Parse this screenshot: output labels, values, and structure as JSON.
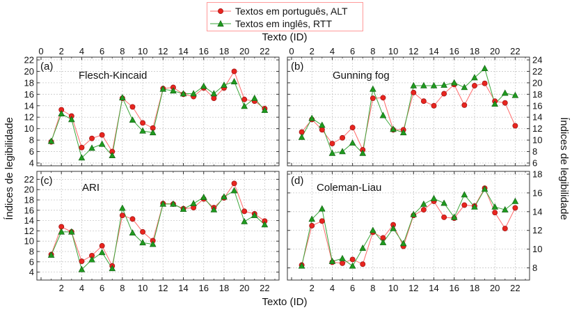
{
  "legend": {
    "alt_label": "Textos em português, ALT",
    "rtt_label": "Textos em inglês, RTT"
  },
  "colors": {
    "alt": "#e8251f",
    "rtt": "#1f9a1f",
    "alt_line": "#ff6a6a",
    "rtt_line": "#3aa63a",
    "grid": "#c8c8c8"
  },
  "axes": {
    "top_xlabel": "Texto (ID)",
    "bottom_xlabel": "Texto (ID)",
    "left_ylabel": "Índices de legibilidade",
    "right_ylabel": "Índices de legibilidade"
  },
  "chart_data": [
    {
      "type": "line",
      "panel": "(a)",
      "title": "Flesch-Kincaid",
      "x": [
        1,
        2,
        3,
        4,
        5,
        6,
        7,
        8,
        9,
        10,
        11,
        12,
        13,
        14,
        15,
        16,
        17,
        18,
        19,
        20,
        21,
        22
      ],
      "xlim": [
        0,
        23
      ],
      "xticks": [
        0,
        2,
        4,
        6,
        8,
        10,
        12,
        14,
        16,
        18,
        20,
        22
      ],
      "ylim": [
        4,
        22
      ],
      "yticks": [
        4,
        6,
        8,
        10,
        12,
        14,
        16,
        18,
        20,
        22
      ],
      "y_axis_side": "left",
      "series": [
        {
          "name": "Textos em português, ALT",
          "values": [
            7.7,
            13.3,
            12.2,
            6.7,
            8.3,
            8.9,
            6.0,
            15.3,
            13.8,
            11.0,
            10.1,
            17.0,
            17.2,
            16.0,
            15.6,
            17.1,
            15.3,
            17.1,
            20.0,
            15.1,
            14.8,
            13.5
          ]
        },
        {
          "name": "Textos em inglês, RTT",
          "values": [
            7.8,
            12.6,
            11.6,
            4.9,
            6.6,
            7.3,
            5.3,
            15.4,
            11.5,
            9.6,
            9.3,
            16.9,
            16.6,
            16.1,
            16.1,
            17.4,
            16.1,
            17.6,
            18.2,
            13.9,
            15.3,
            13.2
          ]
        }
      ]
    },
    {
      "type": "line",
      "panel": "(b)",
      "title": "Gunning fog",
      "x": [
        1,
        2,
        3,
        4,
        5,
        6,
        7,
        8,
        9,
        10,
        11,
        12,
        13,
        14,
        15,
        16,
        17,
        18,
        19,
        20,
        21,
        22
      ],
      "xlim": [
        0,
        23
      ],
      "xticks": [
        0,
        2,
        4,
        6,
        8,
        10,
        12,
        14,
        16,
        18,
        20,
        22
      ],
      "ylim": [
        6,
        24
      ],
      "yticks": [
        6,
        8,
        10,
        12,
        14,
        16,
        18,
        20,
        22,
        24
      ],
      "y_axis_side": "right",
      "series": [
        {
          "name": "Textos em português, ALT",
          "values": [
            11.4,
            13.6,
            11.8,
            9.4,
            10.4,
            12.2,
            8.3,
            17.3,
            17.4,
            11.8,
            11.8,
            18.3,
            16.8,
            16.0,
            18.1,
            19.7,
            16.1,
            19.5,
            19.9,
            16.8,
            16.5,
            12.5
          ]
        },
        {
          "name": "Textos em inglês, RTT",
          "values": [
            10.5,
            13.8,
            12.6,
            7.7,
            8.0,
            9.5,
            7.7,
            18.9,
            14.3,
            11.9,
            11.3,
            19.5,
            19.5,
            19.5,
            19.6,
            20.0,
            19.2,
            20.9,
            22.5,
            16.3,
            18.2,
            17.8
          ]
        }
      ]
    },
    {
      "type": "line",
      "panel": "(c)",
      "title": "ARI",
      "x": [
        1,
        2,
        3,
        4,
        5,
        6,
        7,
        8,
        9,
        10,
        11,
        12,
        13,
        14,
        15,
        16,
        17,
        18,
        19,
        20,
        21,
        22
      ],
      "xlim": [
        0,
        23
      ],
      "xticks": [
        0,
        2,
        4,
        6,
        8,
        10,
        12,
        14,
        16,
        18,
        20,
        22
      ],
      "ylim": [
        3,
        23
      ],
      "yticks": [
        4,
        6,
        8,
        10,
        12,
        14,
        16,
        18,
        20,
        22
      ],
      "y_axis_side": "left",
      "series": [
        {
          "name": "Textos em português, ALT",
          "values": [
            7.4,
            12.8,
            11.8,
            6.1,
            7.2,
            9.1,
            5.2,
            15.0,
            14.3,
            11.8,
            10.1,
            17.3,
            17.2,
            16.3,
            16.5,
            18.2,
            16.5,
            18.4,
            21.2,
            15.8,
            15.3,
            13.9
          ]
        },
        {
          "name": "Textos em inglês, RTT",
          "values": [
            7.3,
            11.8,
            11.8,
            4.5,
            6.4,
            7.8,
            4.7,
            16.4,
            11.6,
            9.7,
            9.4,
            17.2,
            17.2,
            16.2,
            17.3,
            18.5,
            16.1,
            18.6,
            19.8,
            13.8,
            15.0,
            13.2
          ]
        }
      ]
    },
    {
      "type": "line",
      "panel": "(d)",
      "title": "Coleman-Liau",
      "x": [
        1,
        2,
        3,
        4,
        5,
        6,
        7,
        8,
        9,
        10,
        11,
        12,
        13,
        14,
        15,
        16,
        17,
        18,
        19,
        20,
        21,
        22
      ],
      "xlim": [
        0,
        23
      ],
      "xticks": [
        0,
        2,
        4,
        6,
        8,
        10,
        12,
        14,
        16,
        18,
        20,
        22
      ],
      "ylim": [
        7,
        18
      ],
      "yticks": [
        8,
        10,
        12,
        14,
        16,
        18
      ],
      "y_axis_side": "right",
      "series": [
        {
          "name": "Textos em português, ALT",
          "values": [
            8.3,
            12.5,
            13.0,
            8.6,
            8.5,
            8.9,
            8.4,
            11.8,
            11.2,
            12.6,
            10.3,
            13.6,
            14.2,
            15.1,
            13.4,
            13.3,
            14.7,
            14.6,
            16.5,
            13.9,
            12.2,
            14.4
          ]
        },
        {
          "name": "Textos em inglês, RTT",
          "values": [
            8.2,
            13.2,
            14.3,
            8.7,
            9.0,
            8.2,
            10.1,
            12.0,
            10.7,
            12.2,
            10.6,
            13.7,
            14.8,
            15.4,
            14.9,
            13.4,
            15.8,
            14.5,
            16.4,
            14.5,
            14.2,
            15.1
          ]
        }
      ]
    }
  ]
}
